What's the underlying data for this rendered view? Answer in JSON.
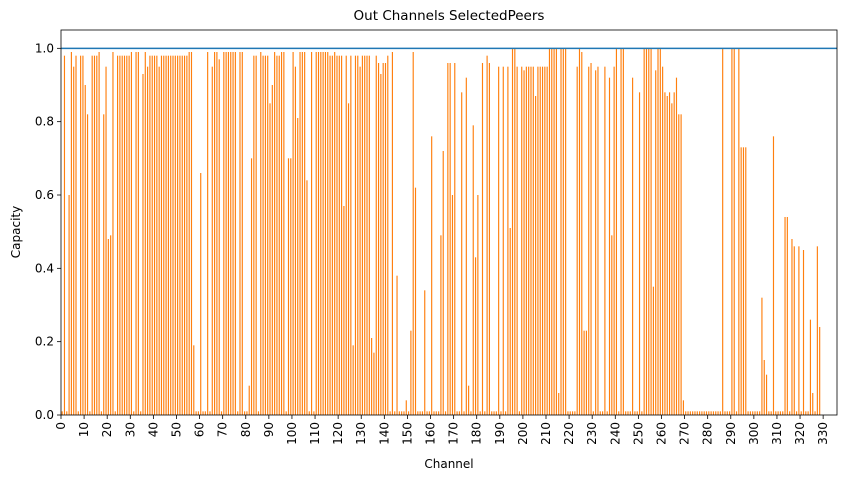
{
  "chart_data": {
    "type": "bar",
    "title": "Out Channels SelectedPeers",
    "xlabel": "Channel",
    "ylabel": "Capacity",
    "ylim": [
      0.0,
      1.05
    ],
    "xlim": [
      0,
      336
    ],
    "x_ticks": [
      0,
      10,
      20,
      30,
      40,
      50,
      60,
      70,
      80,
      90,
      100,
      110,
      120,
      130,
      140,
      150,
      160,
      170,
      180,
      190,
      200,
      210,
      220,
      230,
      240,
      250,
      260,
      270,
      280,
      290,
      300,
      310,
      320,
      330
    ],
    "y_ticks": [
      0.0,
      0.2,
      0.4,
      0.6,
      0.8,
      1.0
    ],
    "y_tick_labels": [
      "0.0",
      "0.2",
      "0.4",
      "0.6",
      "0.8",
      "1.0"
    ],
    "reference_line": {
      "y": 1.0,
      "color": "#1f77b4"
    },
    "bar_color": "#ff7f0e",
    "values": [
      0.01,
      0.98,
      0.01,
      0.6,
      0.99,
      0.95,
      0.98,
      0.01,
      0.98,
      0.98,
      0.9,
      0.82,
      0.01,
      0.98,
      0.98,
      0.98,
      0.99,
      0.01,
      0.82,
      0.95,
      0.48,
      0.49,
      0.99,
      0.01,
      0.98,
      0.98,
      0.98,
      0.98,
      0.98,
      0.98,
      0.99,
      0.01,
      0.99,
      0.99,
      0.01,
      0.93,
      0.99,
      0.95,
      0.98,
      0.98,
      0.98,
      0.98,
      0.95,
      0.98,
      0.98,
      0.98,
      0.98,
      0.98,
      0.98,
      0.98,
      0.98,
      0.98,
      0.98,
      0.98,
      0.98,
      0.99,
      0.99,
      0.19,
      0.01,
      0.01,
      0.66,
      0.01,
      0.01,
      0.99,
      0.01,
      0.95,
      0.99,
      0.99,
      0.97,
      0.01,
      0.99,
      0.99,
      0.99,
      0.99,
      0.99,
      0.99,
      0.01,
      0.99,
      0.99,
      0.01,
      0.01,
      0.08,
      0.7,
      0.98,
      0.98,
      0.01,
      0.99,
      0.98,
      0.98,
      0.98,
      0.85,
      0.9,
      0.99,
      0.98,
      0.98,
      0.99,
      0.99,
      0.01,
      0.7,
      0.7,
      0.99,
      0.95,
      0.81,
      0.99,
      0.99,
      0.99,
      0.64,
      0.01,
      0.99,
      0.01,
      0.99,
      0.99,
      0.99,
      0.99,
      0.99,
      0.99,
      0.98,
      0.98,
      0.99,
      0.98,
      0.98,
      0.98,
      0.57,
      0.98,
      0.85,
      0.98,
      0.19,
      0.98,
      0.98,
      0.95,
      0.98,
      0.98,
      0.98,
      0.98,
      0.21,
      0.17,
      0.98,
      0.96,
      0.93,
      0.96,
      0.96,
      0.98,
      0.01,
      0.99,
      0.01,
      0.38,
      0.01,
      0.01,
      0.01,
      0.04,
      0.01,
      0.23,
      0.99,
      0.62,
      0.01,
      0.01,
      0.01,
      0.34,
      0.01,
      0.01,
      0.76,
      0.01,
      0.01,
      0.01,
      0.49,
      0.72,
      0.01,
      0.96,
      0.96,
      0.6,
      0.96,
      0.01,
      0.01,
      0.88,
      0.01,
      0.92,
      0.08,
      0.01,
      0.79,
      0.43,
      0.6,
      0.01,
      0.96,
      0.01,
      0.98,
      0.96,
      0.01,
      0.01,
      0.01,
      0.95,
      0.01,
      0.95,
      0.01,
      0.95,
      0.51,
      1.0,
      1.0,
      0.95,
      0.01,
      0.95,
      0.94,
      0.95,
      0.95,
      0.95,
      0.95,
      0.87,
      0.95,
      0.95,
      0.95,
      0.95,
      0.95,
      1.0,
      1.0,
      1.0,
      1.0,
      0.06,
      1.0,
      1.0,
      1.0,
      0.01,
      0.01,
      0.01,
      0.01,
      0.95,
      1.0,
      0.99,
      0.23,
      0.23,
      0.95,
      0.96,
      0.01,
      0.94,
      0.95,
      0.01,
      0.01,
      0.95,
      0.01,
      0.92,
      0.49,
      0.95,
      1.0,
      0.01,
      1.0,
      1.0,
      0.01,
      0.01,
      0.01,
      0.92,
      0.01,
      0.01,
      0.88,
      0.01,
      1.0,
      1.0,
      1.0,
      1.0,
      0.35,
      0.94,
      1.0,
      1.0,
      0.95,
      0.88,
      0.87,
      0.88,
      0.85,
      0.88,
      0.92,
      0.82,
      0.82,
      0.04,
      0.01,
      0.01,
      0.01,
      0.01,
      0.01,
      0.01,
      0.01,
      0.01,
      0.01,
      0.01,
      0.01,
      0.01,
      0.01,
      0.01,
      0.01,
      0.01,
      1.0,
      0.01,
      0.01,
      0.01,
      1.0,
      1.0,
      0.01,
      1.0,
      0.73,
      0.73,
      0.73,
      0.01,
      0.01,
      0.01,
      0.01,
      0.01,
      0.01,
      0.32,
      0.15,
      0.11,
      0.01,
      0.01,
      0.76,
      0.01,
      0.01,
      0.01,
      0.01,
      0.54,
      0.54,
      0.01,
      0.48,
      0.46,
      0.01,
      0.46,
      0.01,
      0.45,
      0.01,
      0.01,
      0.26,
      0.06,
      0.01,
      0.46,
      0.24
    ]
  }
}
